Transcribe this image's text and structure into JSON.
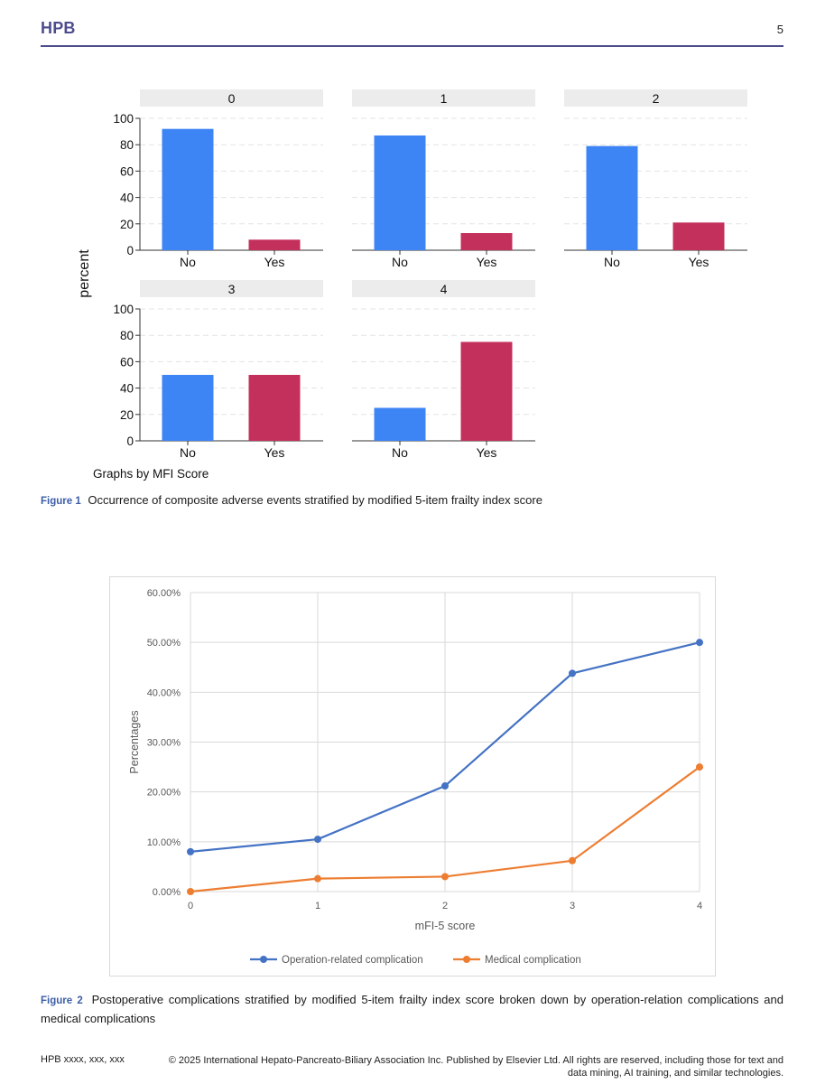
{
  "header": {
    "journal": "HPB",
    "page_number": "5"
  },
  "figure1": {
    "label": "Figure 1",
    "caption": "Occurrence of composite adverse events stratified by modified 5-item frailty index score",
    "note": "Graphs by MFI Score",
    "colors": {
      "No": "#3d84f5",
      "Yes": "#c4305c"
    }
  },
  "figure2": {
    "label": "Figure 2",
    "caption": "Postoperative complications stratified by modified 5-item frailty index score broken down by operation-relation complications and medical complications"
  },
  "chart_data": [
    {
      "type": "bar",
      "ylabel": "percent",
      "ylim": [
        0,
        100
      ],
      "yticks": [
        0,
        20,
        40,
        60,
        80,
        100
      ],
      "categories": [
        "No",
        "Yes"
      ],
      "grid": true,
      "panels": [
        {
          "title": "0",
          "values": [
            92,
            8
          ]
        },
        {
          "title": "1",
          "values": [
            87,
            13
          ]
        },
        {
          "title": "2",
          "values": [
            79,
            21
          ]
        },
        {
          "title": "3",
          "values": [
            50,
            50
          ]
        },
        {
          "title": "4",
          "values": [
            25,
            75
          ]
        }
      ]
    },
    {
      "type": "line",
      "xlabel": "mFI-5 score",
      "ylabel": "Percentages",
      "x": [
        0,
        1,
        2,
        3,
        4
      ],
      "ylim": [
        0,
        60
      ],
      "yticks": [
        "0.00%",
        "10.00%",
        "20.00%",
        "30.00%",
        "40.00%",
        "50.00%",
        "60.00%"
      ],
      "grid": true,
      "legend": "bottom",
      "series": [
        {
          "name": "Operation-related complication",
          "color": "#4472c4",
          "values": [
            8.0,
            10.5,
            21.2,
            43.8,
            50.0
          ]
        },
        {
          "name": "Medical complication",
          "color": "#ed7d31",
          "values": [
            0.0,
            2.6,
            3.0,
            6.2,
            25.0
          ]
        }
      ]
    }
  ],
  "footer": {
    "left": "HPB xxxx, xxx, xxx",
    "right": "© 2025 International Hepato-Pancreato-Biliary Association Inc. Published by Elsevier Ltd. All rights are reserved, including those for text and data mining, AI training, and similar technologies."
  }
}
